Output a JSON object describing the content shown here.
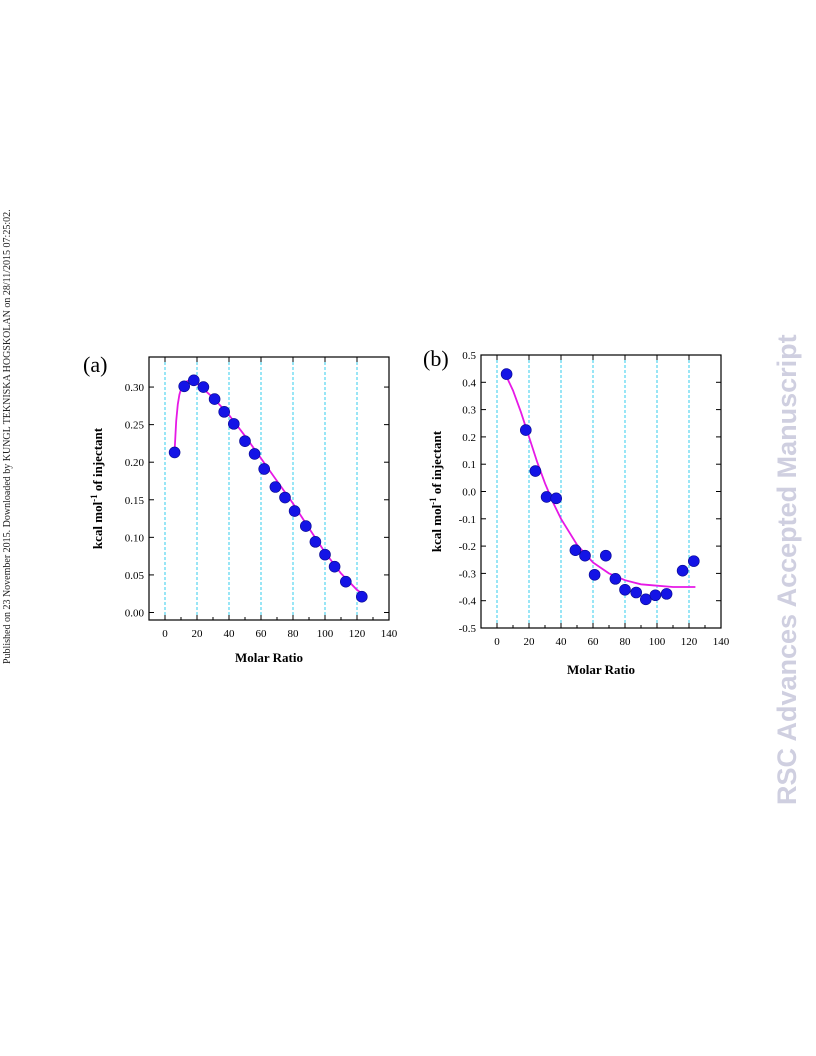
{
  "side_note": "Published on 23 November 2015. Downloaded by KUNGL TEKNISKA HOGSKOLAN on 28/11/2015 07:25:02.",
  "watermark": "RSC Advances Accepted Manuscript",
  "colors": {
    "points": "#1414e6",
    "fit": "#e619e6",
    "grid": "#33ccee"
  },
  "chart_data": [
    {
      "type": "scatter",
      "panel_label": "(a)",
      "xlabel": "Molar Ratio",
      "ylabel": "kcal mol-1 of injectant",
      "xlim": [
        -10,
        140
      ],
      "ylim": [
        -0.01,
        0.34
      ],
      "xticks": [
        "0",
        "20",
        "40",
        "60",
        "80",
        "100",
        "120",
        "140"
      ],
      "yticks": [
        "0.00",
        "0.05",
        "0.10",
        "0.15",
        "0.20",
        "0.25",
        "0.30"
      ],
      "grid": "vertical dashed",
      "points": {
        "x": [
          6,
          12,
          18,
          24,
          31,
          37,
          43,
          50,
          56,
          62,
          69,
          75,
          81,
          88,
          94,
          100,
          106,
          113,
          123
        ],
        "y": [
          0.213,
          0.301,
          0.309,
          0.3,
          0.284,
          0.267,
          0.251,
          0.228,
          0.211,
          0.191,
          0.167,
          0.153,
          0.135,
          0.115,
          0.094,
          0.077,
          0.061,
          0.041,
          0.021
        ]
      },
      "fit": {
        "x": [
          6,
          7,
          8,
          9,
          10,
          12,
          14,
          16,
          18,
          20,
          30,
          40,
          50,
          60,
          70,
          80,
          90,
          100,
          110,
          120,
          124
        ],
        "y": [
          0.215,
          0.255,
          0.277,
          0.29,
          0.297,
          0.305,
          0.308,
          0.308,
          0.307,
          0.305,
          0.286,
          0.263,
          0.235,
          0.205,
          0.175,
          0.145,
          0.112,
          0.08,
          0.052,
          0.03,
          0.024
        ]
      }
    },
    {
      "type": "scatter",
      "panel_label": "(b)",
      "xlabel": "Molar Ratio",
      "ylabel": "kcal mol-1 of injectant",
      "xlim": [
        -10,
        140
      ],
      "ylim": [
        -0.5,
        0.5
      ],
      "xticks": [
        "0",
        "20",
        "40",
        "60",
        "80",
        "100",
        "120",
        "140"
      ],
      "yticks": [
        "-0.5",
        "-0.4",
        "-0.3",
        "-0.2",
        "-0.1",
        "0.0",
        "0.1",
        "0.2",
        "0.3",
        "0.4",
        "0.5"
      ],
      "grid": "vertical dashed",
      "points": {
        "x": [
          6,
          18,
          24,
          31,
          37,
          49,
          55,
          61,
          68,
          74,
          80,
          87,
          93,
          99,
          106,
          116,
          123
        ],
        "y": [
          0.43,
          0.225,
          0.075,
          -0.02,
          -0.025,
          -0.215,
          -0.235,
          -0.305,
          -0.235,
          -0.32,
          -0.36,
          -0.37,
          -0.395,
          -0.38,
          -0.375,
          -0.29,
          -0.255
        ]
      },
      "fit": {
        "x": [
          6,
          10,
          15,
          20,
          25,
          30,
          35,
          40,
          50,
          60,
          70,
          80,
          90,
          100,
          110,
          120,
          124
        ],
        "y": [
          0.42,
          0.37,
          0.29,
          0.2,
          0.11,
          0.03,
          -0.04,
          -0.1,
          -0.195,
          -0.26,
          -0.3,
          -0.325,
          -0.34,
          -0.345,
          -0.35,
          -0.35,
          -0.35
        ]
      }
    }
  ]
}
